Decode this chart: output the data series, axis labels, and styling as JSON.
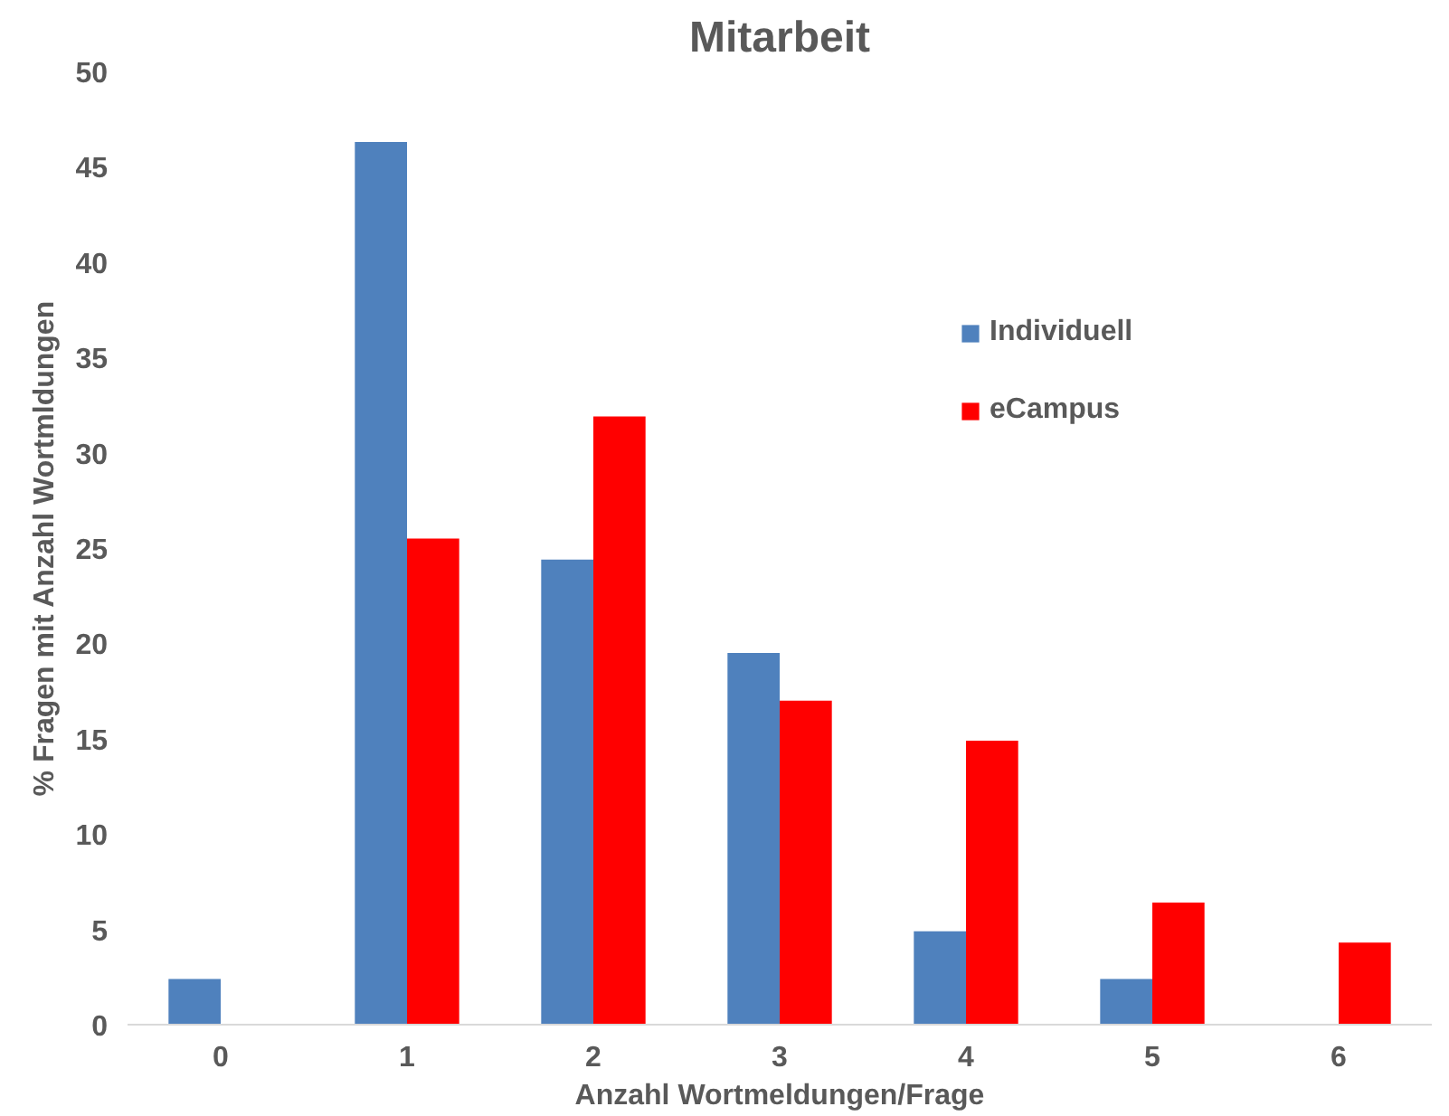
{
  "chart_data": {
    "type": "bar",
    "title": "Mitarbeit",
    "xlabel": "Anzahl Wortmeldungen/Frage",
    "ylabel": "% Fragen mit Anzahl Wortmldungen",
    "categories": [
      "0",
      "1",
      "2",
      "3",
      "4",
      "5",
      "6"
    ],
    "series": [
      {
        "name": "Individuell",
        "color": "#4f81bd",
        "values": [
          2.4,
          46.3,
          24.4,
          19.5,
          4.9,
          2.4,
          null
        ]
      },
      {
        "name": "eCampus",
        "color": "#ff0000",
        "values": [
          null,
          25.5,
          31.9,
          17.0,
          14.9,
          6.4,
          4.3
        ]
      }
    ],
    "ylim": [
      0,
      50
    ],
    "yticks": [
      0,
      5,
      10,
      15,
      20,
      25,
      30,
      35,
      40,
      45,
      50
    ],
    "grid": false,
    "legend": "top right"
  }
}
